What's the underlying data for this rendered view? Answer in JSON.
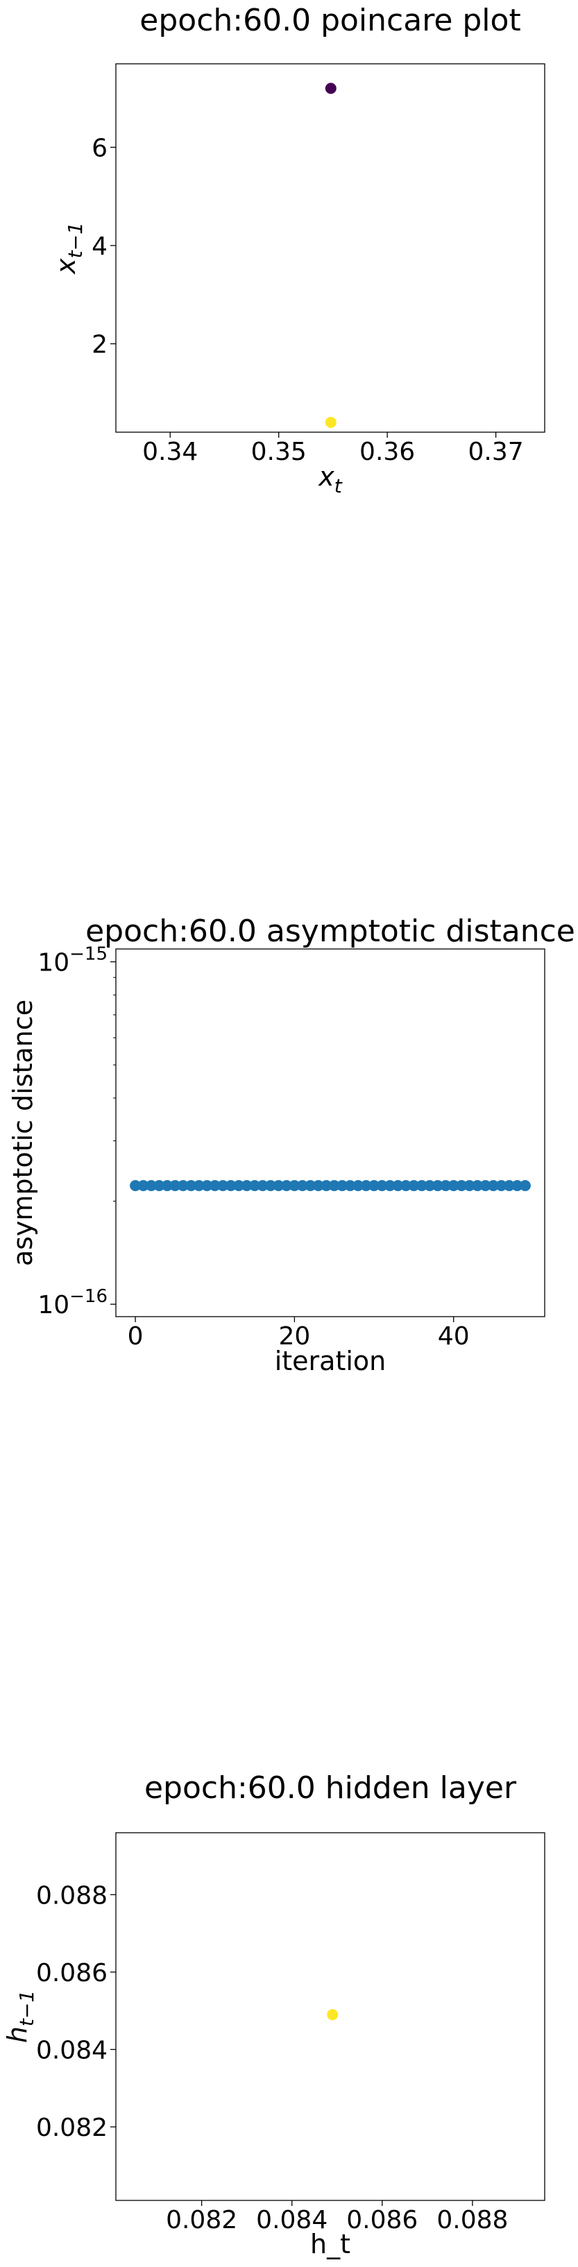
{
  "chart_data": [
    {
      "type": "scatter",
      "title": "epoch:60.0 poincare plot",
      "xlabel": "x_t",
      "ylabel": "x_{t-1}",
      "xlim": [
        0.335,
        0.3745
      ],
      "ylim": [
        0.2,
        7.7
      ],
      "xticks": [
        0.34,
        0.35,
        0.36,
        0.37
      ],
      "xtick_labels": [
        "0.34",
        "0.35",
        "0.36",
        "0.37"
      ],
      "yticks": [
        2,
        4,
        6
      ],
      "ytick_labels": [
        "2",
        "4",
        "6"
      ],
      "grid": false,
      "points": [
        {
          "x": 0.3548,
          "y": 7.2,
          "color": "#440154"
        },
        {
          "x": 0.3548,
          "y": 0.4,
          "color": "#fde725"
        }
      ]
    },
    {
      "type": "scatter",
      "title": "epoch:60.0 asymptotic distance",
      "xlabel": "iteration",
      "ylabel": "asymptotic distance",
      "yscale": "log",
      "xlim": [
        -2.45,
        51.45
      ],
      "ylim": [
        9.2e-17,
        1.09e-15
      ],
      "xticks": [
        0,
        20,
        40
      ],
      "xtick_labels": [
        "0",
        "20",
        "40"
      ],
      "yticks": [
        1e-16,
        1e-15
      ],
      "ytick_labels": [
        {
          "base": "10",
          "exp": "−16"
        },
        {
          "base": "10",
          "exp": "−15"
        }
      ],
      "grid": false,
      "color": "#1f77b4",
      "x": [
        0,
        1,
        2,
        3,
        4,
        5,
        6,
        7,
        8,
        9,
        10,
        11,
        12,
        13,
        14,
        15,
        16,
        17,
        18,
        19,
        20,
        21,
        22,
        23,
        24,
        25,
        26,
        27,
        28,
        29,
        30,
        31,
        32,
        33,
        34,
        35,
        36,
        37,
        38,
        39,
        40,
        41,
        42,
        43,
        44,
        45,
        46,
        47,
        48,
        49
      ],
      "y": [
        2.22e-16,
        2.22e-16,
        2.22e-16,
        2.22e-16,
        2.22e-16,
        2.22e-16,
        2.22e-16,
        2.22e-16,
        2.22e-16,
        2.22e-16,
        2.22e-16,
        2.22e-16,
        2.22e-16,
        2.22e-16,
        2.22e-16,
        2.22e-16,
        2.22e-16,
        2.22e-16,
        2.22e-16,
        2.22e-16,
        2.22e-16,
        2.22e-16,
        2.22e-16,
        2.22e-16,
        2.22e-16,
        2.22e-16,
        2.22e-16,
        2.22e-16,
        2.22e-16,
        2.22e-16,
        2.22e-16,
        2.22e-16,
        2.22e-16,
        2.22e-16,
        2.22e-16,
        2.22e-16,
        2.22e-16,
        2.22e-16,
        2.22e-16,
        2.22e-16,
        2.22e-16,
        2.22e-16,
        2.22e-16,
        2.22e-16,
        2.22e-16,
        2.22e-16,
        2.22e-16,
        2.22e-16,
        2.22e-16,
        2.22e-16
      ]
    },
    {
      "type": "scatter",
      "title": "epoch:60.0 hidden layer",
      "xlabel": "h_t",
      "ylabel": "h_{t-1}",
      "xlim": [
        0.0801,
        0.0896
      ],
      "ylim": [
        0.0801,
        0.0896
      ],
      "xticks": [
        0.082,
        0.084,
        0.086,
        0.088
      ],
      "xtick_labels": [
        "0.082",
        "0.084",
        "0.086",
        "0.088"
      ],
      "yticks": [
        0.082,
        0.084,
        0.086,
        0.088
      ],
      "ytick_labels": [
        "0.082",
        "0.084",
        "0.086",
        "0.088"
      ],
      "grid": false,
      "points": [
        {
          "x": 0.0849,
          "y": 0.0849,
          "color": "#fde725"
        }
      ]
    }
  ]
}
